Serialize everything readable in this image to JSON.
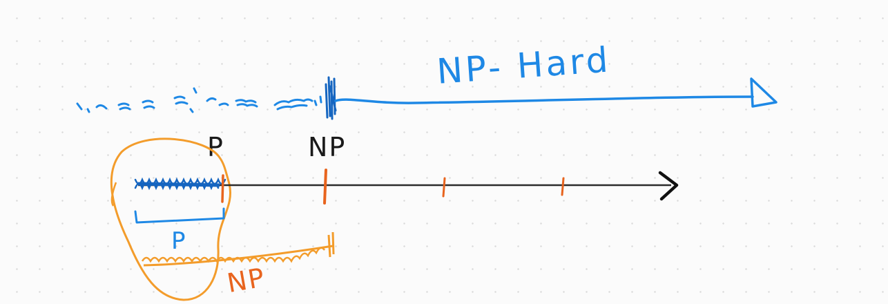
{
  "labels": {
    "np_hard": "NP- Hard",
    "p_top": "P",
    "np_top": "NP",
    "p_bracket": "P",
    "np_bottom": "NP"
  },
  "colors": {
    "blue": "#1e88e5",
    "orange": "#f39c2b",
    "red_orange": "#e8641e",
    "black": "#1a1a1a",
    "axis": "#2b2b2b"
  }
}
